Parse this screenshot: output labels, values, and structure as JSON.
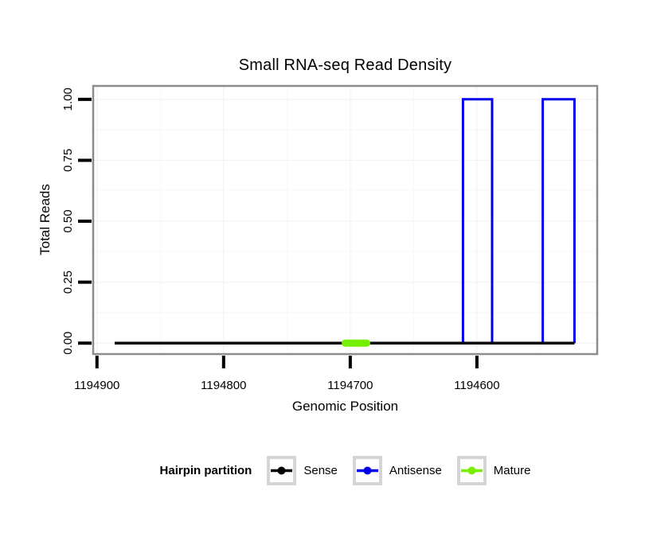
{
  "figure": {
    "background": "#ffffff"
  },
  "chart_data": {
    "type": "line",
    "title": "Small RNA-seq Read Density",
    "xlabel": "Genomic Position",
    "ylabel": "Total Reads",
    "x_axis": {
      "reversed": true,
      "limits": [
        1194903,
        1194505
      ],
      "ticks": [
        1194900,
        1194800,
        1194700,
        1194600
      ],
      "tick_labels": [
        "1194900",
        "1194800",
        "1194700",
        "1194600"
      ],
      "minor_ticks": [
        1194850,
        1194750,
        1194650,
        1194550
      ]
    },
    "y_axis": {
      "limits": [
        -0.045,
        1.055
      ],
      "ticks": [
        0,
        0.25,
        0.5,
        0.75,
        1
      ],
      "tick_labels": [
        "0.00",
        "0.25",
        "0.50",
        "0.75",
        "1.00"
      ],
      "minor_ticks": [
        0.125,
        0.375,
        0.625,
        0.875
      ]
    },
    "grid": {
      "on": true,
      "major_color": "#f3f3f3",
      "minor_color": "#f8f8f8"
    },
    "panel": {
      "background": "#ffffff",
      "border_color": "#8c8c8c"
    },
    "tick_color": "#000000",
    "legend": {
      "title": "Hairpin partition",
      "position": "bottom",
      "key_border_color": "#d5d5d5",
      "entries": [
        {
          "label": "Sense",
          "color": "#000000"
        },
        {
          "label": "Antisense",
          "color": "#0000ee"
        },
        {
          "label": "Mature",
          "color": "#76ee00"
        }
      ]
    },
    "series": [
      {
        "name": "Sense",
        "color": "#000000",
        "width": 3.5,
        "linecap": "butt",
        "z": 2,
        "points": [
          [
            1194886,
            0
          ],
          [
            1194523,
            0
          ]
        ]
      },
      {
        "name": "Antisense",
        "color": "#0000ee",
        "width": 3,
        "linecap": "butt",
        "z": 1,
        "points": [
          [
            1194886,
            0
          ],
          [
            1194611,
            0
          ],
          [
            1194611,
            1
          ],
          [
            1194588,
            1
          ],
          [
            1194588,
            0
          ],
          [
            1194548,
            0
          ],
          [
            1194548,
            1
          ],
          [
            1194523,
            1
          ],
          [
            1194523,
            0
          ]
        ]
      },
      {
        "name": "Mature",
        "color": "#76ee00",
        "width": 9,
        "linecap": "round",
        "z": 3,
        "points": [
          [
            1194704,
            0
          ],
          [
            1194687,
            0
          ]
        ]
      }
    ]
  }
}
